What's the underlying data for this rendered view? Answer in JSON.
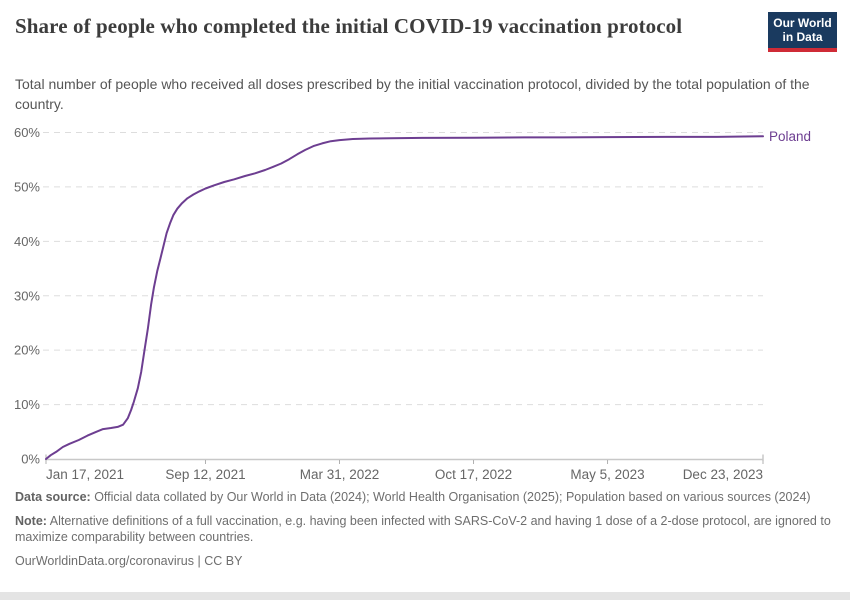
{
  "header": {
    "title": "Share of people who completed the initial COVID-19 vaccination protocol",
    "subtitle": "Total number of people who received all doses prescribed by the initial vaccination protocol, divided by the total population of the country.",
    "logo": {
      "line1": "Our World",
      "line2": "in Data"
    }
  },
  "footer": {
    "data_source_label": "Data source:",
    "data_source_text": " Official data collated by Our World in Data (2024); World Health Organisation (2025); Population based on various sources (2024)",
    "note_label": "Note:",
    "note_text": " Alternative definitions of a full vaccination, e.g. having been infected with SARS-CoV-2 and having 1 dose of a 2-dose protocol, are ignored to maximize comparability between countries.",
    "attribution": "OurWorldinData.org/coronavirus | CC BY"
  },
  "colors": {
    "line": "#6d3e91",
    "entity_label": "#6d3e91",
    "grid": "#dddddd",
    "axis": "#c8c8c8",
    "tick": "#b0b0b0",
    "tick_label": "#666666",
    "logo_bg": "#1a3a5f",
    "logo_red": "#cf2b36"
  },
  "chart_data": {
    "type": "line",
    "title": "Share of people who completed the initial COVID-19 vaccination protocol",
    "xlabel": "",
    "ylabel": "",
    "ylim": [
      0,
      60
    ],
    "grid": "horizontal-dashed",
    "legend_position": "right-of-line",
    "y_ticks": [
      {
        "value": 0,
        "label": "0%"
      },
      {
        "value": 10,
        "label": "10%"
      },
      {
        "value": 20,
        "label": "20%"
      },
      {
        "value": 30,
        "label": "30%"
      },
      {
        "value": 40,
        "label": "40%"
      },
      {
        "value": 50,
        "label": "50%"
      },
      {
        "value": 60,
        "label": "60%"
      }
    ],
    "x_ticks": [
      {
        "date": "2021-01-17",
        "label": "Jan 17, 2021",
        "align": "start"
      },
      {
        "date": "2021-09-12",
        "label": "Sep 12, 2021",
        "align": "middle"
      },
      {
        "date": "2022-03-31",
        "label": "Mar 31, 2022",
        "align": "middle"
      },
      {
        "date": "2022-10-17",
        "label": "Oct 17, 2022",
        "align": "middle"
      },
      {
        "date": "2023-05-05",
        "label": "May 5, 2023",
        "align": "middle"
      },
      {
        "date": "2023-12-23",
        "label": "Dec 23, 2023",
        "align": "end"
      }
    ],
    "series": [
      {
        "name": "Poland",
        "points": [
          [
            "2021-01-17",
            0
          ],
          [
            "2021-01-24",
            0.7
          ],
          [
            "2021-02-01",
            1.3
          ],
          [
            "2021-02-11",
            2.2
          ],
          [
            "2021-02-21",
            2.8
          ],
          [
            "2021-03-07",
            3.5
          ],
          [
            "2021-03-20",
            4.3
          ],
          [
            "2021-04-02",
            5.0
          ],
          [
            "2021-04-12",
            5.5
          ],
          [
            "2021-04-24",
            5.7
          ],
          [
            "2021-05-04",
            5.9
          ],
          [
            "2021-05-12",
            6.3
          ],
          [
            "2021-05-19",
            7.5
          ],
          [
            "2021-05-24",
            9.0
          ],
          [
            "2021-05-28",
            10.5
          ],
          [
            "2021-06-03",
            13.0
          ],
          [
            "2021-06-08",
            16.0
          ],
          [
            "2021-06-13",
            20.0
          ],
          [
            "2021-06-18",
            24.0
          ],
          [
            "2021-06-23",
            28.5
          ],
          [
            "2021-06-27",
            31.5
          ],
          [
            "2021-07-02",
            34.5
          ],
          [
            "2021-07-07",
            37.0
          ],
          [
            "2021-07-11",
            39.0
          ],
          [
            "2021-07-16",
            41.5
          ],
          [
            "2021-07-21",
            43.3
          ],
          [
            "2021-07-26",
            44.8
          ],
          [
            "2021-08-01",
            46.0
          ],
          [
            "2021-08-08",
            47.0
          ],
          [
            "2021-08-16",
            47.9
          ],
          [
            "2021-08-25",
            48.6
          ],
          [
            "2021-09-03",
            49.2
          ],
          [
            "2021-09-12",
            49.7
          ],
          [
            "2021-09-25",
            50.3
          ],
          [
            "2021-10-10",
            50.9
          ],
          [
            "2021-10-25",
            51.4
          ],
          [
            "2021-11-10",
            52.0
          ],
          [
            "2021-11-25",
            52.5
          ],
          [
            "2021-12-10",
            53.1
          ],
          [
            "2021-12-22",
            53.7
          ],
          [
            "2022-01-03",
            54.3
          ],
          [
            "2022-01-15",
            55.1
          ],
          [
            "2022-01-27",
            56.0
          ],
          [
            "2022-02-08",
            56.8
          ],
          [
            "2022-02-20",
            57.5
          ],
          [
            "2022-03-05",
            58.0
          ],
          [
            "2022-03-18",
            58.4
          ],
          [
            "2022-03-31",
            58.6
          ],
          [
            "2022-04-20",
            58.8
          ],
          [
            "2022-05-15",
            58.9
          ],
          [
            "2022-06-15",
            58.95
          ],
          [
            "2022-08-01",
            59.0
          ],
          [
            "2022-10-17",
            59.05
          ],
          [
            "2023-01-01",
            59.1
          ],
          [
            "2023-03-01",
            59.1
          ],
          [
            "2023-05-05",
            59.15
          ],
          [
            "2023-08-01",
            59.2
          ],
          [
            "2023-10-15",
            59.2
          ],
          [
            "2023-12-23",
            59.3
          ]
        ]
      }
    ]
  }
}
